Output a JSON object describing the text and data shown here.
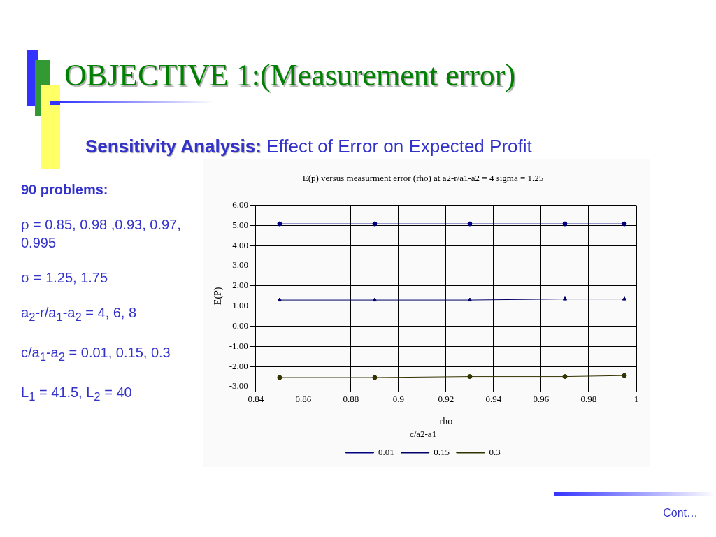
{
  "chart_data": {
    "type": "line",
    "title": "E(p) versus measurment error (rho) at a2-r/a1-a2 = 4 sigma = 1.25",
    "subtitle": "Sensitivity Analysis: Effect of Error on Expected Profit",
    "xlabel": "rho",
    "ylabel": "E(P)",
    "legend_title": "c/a2-a1",
    "legend": "bottom",
    "grid": true,
    "x": [
      0.85,
      0.89,
      0.93,
      0.97,
      0.995
    ],
    "xlim": [
      0.84,
      1
    ],
    "xticks": [
      0.84,
      0.86,
      0.88,
      0.9,
      0.92,
      0.94,
      0.96,
      0.98,
      1
    ],
    "ylim": [
      -3,
      6
    ],
    "yticks": [
      {
        "value": -3,
        "label": "-3.00"
      },
      {
        "value": -2,
        "label": "-2.00"
      },
      {
        "value": -1,
        "label": "-1.00"
      },
      {
        "value": 0,
        "label": "0.00"
      },
      {
        "value": 1,
        "label": "1.00"
      },
      {
        "value": 2,
        "label": "2.00"
      },
      {
        "value": 3,
        "label": "3.00"
      },
      {
        "value": 4,
        "label": "4.00"
      },
      {
        "value": 5,
        "label": "5.00"
      },
      {
        "value": 6,
        "label": "6.00"
      }
    ],
    "series": [
      {
        "name": "0.01",
        "color": "#000080",
        "marker": "circle",
        "values": [
          5.08,
          5.08,
          5.08,
          5.08,
          5.08
        ]
      },
      {
        "name": "0.15",
        "color": "#000066",
        "marker": "triangle",
        "values": [
          1.3,
          1.3,
          1.3,
          1.35,
          1.35
        ]
      },
      {
        "name": "0.3",
        "color": "#333300",
        "marker": "circle",
        "values": [
          -2.55,
          -2.55,
          -2.5,
          -2.5,
          -2.45
        ]
      }
    ],
    "annotations": [
      "OBJECTIVE 1:(Measurement error)",
      "90 problems:",
      "ρ = 0.85, 0.98 ,0.93, 0.97, 0.995",
      "σ = 1.25, 1.75",
      "a$_{2}$-r/a$_{1}$-a$_{2}$ = 4, 6, 8",
      "c/a$_{1}$-a$_{2}$ = 0.01, 0.15, 0.3",
      "L$_{1}$ = 41.5, L$_{2}$ = 40",
      "Cont…"
    ]
  }
}
